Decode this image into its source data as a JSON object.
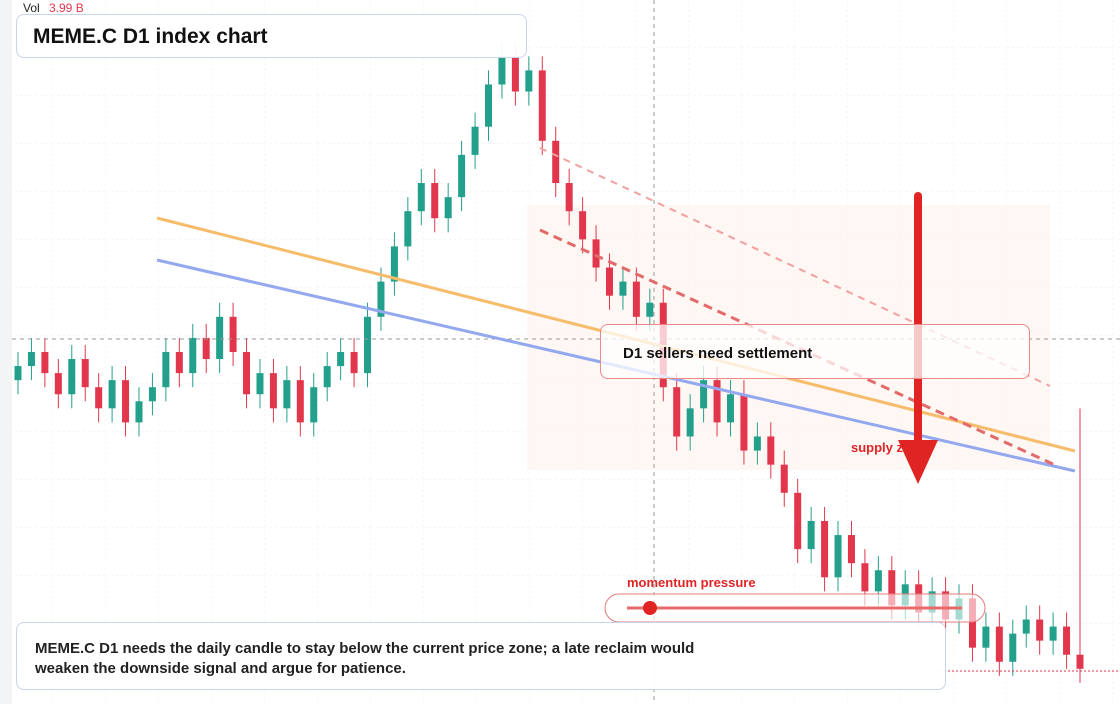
{
  "chart_data": {
    "type": "candlestick",
    "title": "MEME.C D1 index chart",
    "volume_label": "Vol",
    "volume_text": "3.99 B",
    "annotations": [
      "D1 sellers need settlement",
      "supply zone",
      "momentum pressure"
    ],
    "caption": "MEME.C D1 needs the daily candle to stay below the current price zone; a late reclaim would weaken the downside signal and argue for patience.",
    "up_color": "#22a08c",
    "down_color": "#e2364c",
    "ylim": [
      0,
      100
    ],
    "open": [
      46,
      48,
      50,
      47,
      44,
      49,
      45,
      42,
      46,
      40,
      43,
      45,
      50,
      47,
      52,
      49,
      55,
      50,
      44,
      47,
      42,
      46,
      40,
      45,
      48,
      50,
      47,
      55,
      60,
      65,
      70,
      74,
      69,
      72,
      78,
      82,
      88,
      92,
      87,
      90,
      80,
      74,
      70,
      66,
      62,
      58,
      60,
      55,
      57,
      45,
      38,
      42,
      46,
      40,
      44,
      36,
      38,
      34,
      30,
      22,
      26,
      18,
      24,
      20,
      16,
      19,
      14,
      17,
      13,
      16,
      12,
      15,
      8,
      11,
      6,
      10,
      12,
      9,
      11,
      7
    ],
    "high": [
      50,
      52,
      52,
      49,
      51,
      51,
      47,
      48,
      48,
      45,
      47,
      52,
      52,
      54,
      54,
      57,
      57,
      52,
      49,
      49,
      48,
      48,
      47,
      50,
      52,
      52,
      57,
      62,
      67,
      72,
      76,
      76,
      74,
      80,
      84,
      90,
      94,
      94,
      92,
      92,
      82,
      76,
      72,
      68,
      64,
      62,
      62,
      59,
      59,
      47,
      44,
      48,
      48,
      46,
      46,
      40,
      40,
      36,
      32,
      28,
      28,
      26,
      26,
      22,
      21,
      21,
      19,
      19,
      18,
      18,
      17,
      17,
      13,
      13,
      12,
      14,
      14,
      13,
      13,
      42
    ],
    "low": [
      44,
      46,
      45,
      42,
      42,
      43,
      40,
      40,
      38,
      38,
      41,
      43,
      45,
      45,
      47,
      47,
      48,
      42,
      42,
      40,
      40,
      38,
      38,
      43,
      46,
      45,
      45,
      53,
      58,
      63,
      68,
      67,
      67,
      70,
      76,
      80,
      86,
      85,
      85,
      78,
      72,
      68,
      64,
      60,
      56,
      56,
      53,
      53,
      43,
      36,
      36,
      40,
      38,
      38,
      34,
      34,
      32,
      28,
      20,
      20,
      16,
      16,
      18,
      14,
      14,
      12,
      12,
      11,
      11,
      10,
      10,
      6,
      6,
      4,
      4,
      8,
      7,
      7,
      5,
      3
    ],
    "close": [
      48,
      50,
      47,
      44,
      49,
      45,
      42,
      46,
      40,
      43,
      45,
      50,
      47,
      52,
      49,
      55,
      50,
      44,
      47,
      42,
      46,
      40,
      45,
      48,
      50,
      47,
      55,
      60,
      65,
      70,
      74,
      69,
      72,
      78,
      82,
      88,
      92,
      87,
      90,
      80,
      74,
      70,
      66,
      62,
      58,
      60,
      55,
      57,
      45,
      38,
      42,
      46,
      40,
      44,
      36,
      38,
      34,
      30,
      22,
      26,
      18,
      24,
      20,
      16,
      19,
      14,
      17,
      13,
      16,
      12,
      15,
      8,
      11,
      6,
      10,
      12,
      9,
      11,
      7,
      5
    ]
  }
}
